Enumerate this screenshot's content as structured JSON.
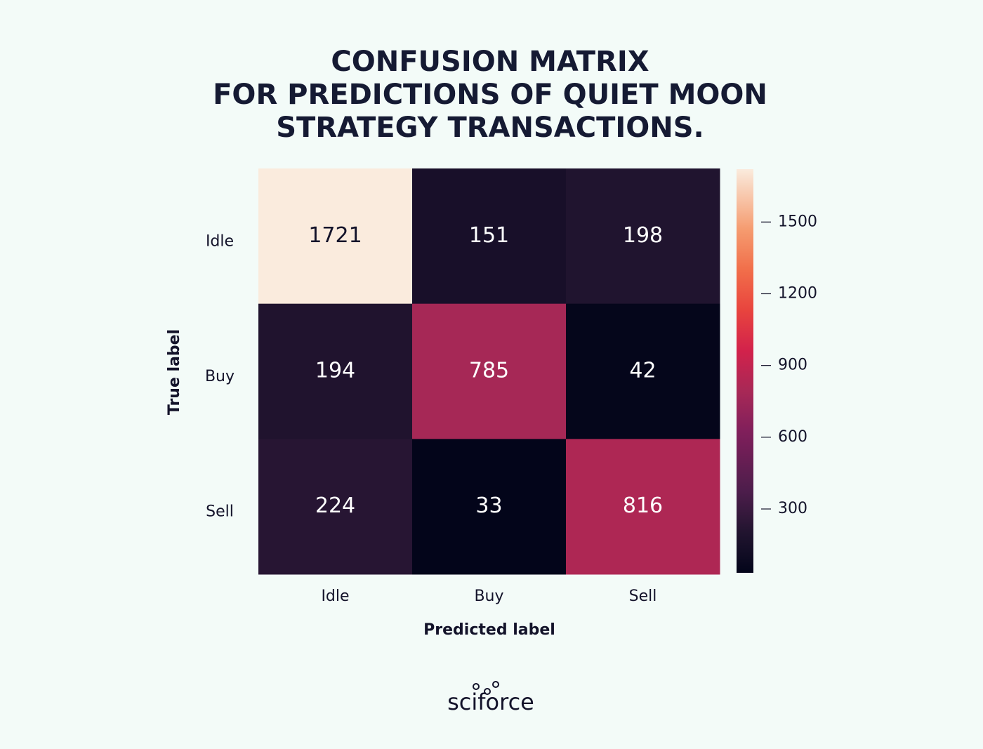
{
  "chart_data": {
    "type": "heatmap",
    "title": [
      "CONFUSION MATRIX",
      "FOR PREDICTIONS OF QUIET MOON",
      "STRATEGY TRANSACTIONS."
    ],
    "x_categories": [
      "Idle",
      "Buy",
      "Sell"
    ],
    "y_categories": [
      "Idle",
      "Buy",
      "Sell"
    ],
    "values": [
      [
        1721,
        151,
        198
      ],
      [
        194,
        785,
        42
      ],
      [
        224,
        33,
        816
      ]
    ],
    "xlabel": "Predicted label",
    "ylabel": "True label",
    "colormap": "rocket",
    "zlim": [
      33,
      1721
    ],
    "zticks": [
      300,
      600,
      900,
      1200,
      1500
    ],
    "brand": "sciforce"
  }
}
